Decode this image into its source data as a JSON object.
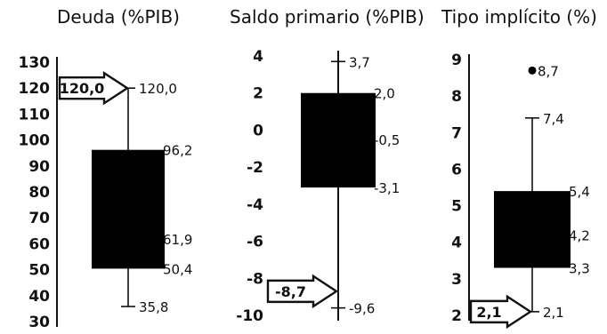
{
  "chart_data": [
    {
      "type": "boxplot",
      "title": "Deuda (%PIB)",
      "ylim": [
        30,
        130
      ],
      "yticks": [
        "30",
        "40",
        "50",
        "60",
        "70",
        "80",
        "90",
        "100",
        "110",
        "120",
        "130"
      ],
      "min": 35.8,
      "q1": 50.4,
      "median": 61.9,
      "q3": 96.2,
      "max": 120.0,
      "labels": {
        "min": "35,8",
        "q1": "50,4",
        "median": "61,9",
        "q3": "96,2",
        "max": "120,0"
      },
      "arrow": {
        "value": 120.0,
        "label": "120,0"
      }
    },
    {
      "type": "boxplot",
      "title": "Saldo primario (%PIB)",
      "ylim": [
        -10,
        4
      ],
      "yticks": [
        "-10",
        "-8",
        "-6",
        "-4",
        "-2",
        "0",
        "2",
        "4"
      ],
      "min": -9.6,
      "q1": -3.1,
      "median": -0.5,
      "q3": 2.0,
      "max": 3.7,
      "labels": {
        "min": "-9,6",
        "q1": "-3,1",
        "median": "-0,5",
        "q3": "2,0",
        "max": "3,7"
      },
      "arrow": {
        "value": -8.7,
        "label": "-8,7"
      }
    },
    {
      "type": "boxplot",
      "title": "Tipo implícito (%)",
      "ylim": [
        2,
        9
      ],
      "yticks": [
        "2",
        "3",
        "4",
        "5",
        "6",
        "7",
        "8",
        "9"
      ],
      "min": 2.1,
      "q1": 3.3,
      "median": 4.2,
      "q3": 5.4,
      "max": 7.4,
      "outlier": 8.7,
      "labels": {
        "min": "2,1",
        "q1": "3,3",
        "median": "4,2",
        "q3": "5,4",
        "max": "7,4",
        "outlier": "8,7"
      },
      "arrow": {
        "value": 2.1,
        "label": "2,1"
      }
    }
  ]
}
